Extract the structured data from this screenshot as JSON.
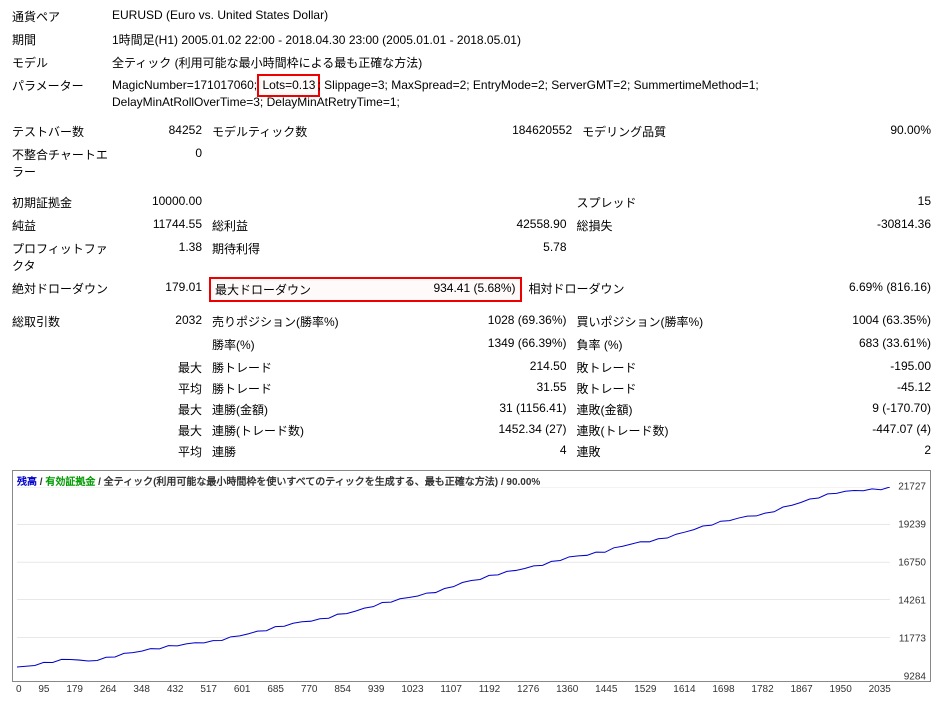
{
  "header": {
    "pair_label": "通貨ペア",
    "pair_value": "EURUSD (Euro vs. United States Dollar)",
    "period_label": "期間",
    "period_value": "1時間足(H1) 2005.01.02 22:00 - 2018.04.30 23:00 (2005.01.01 - 2018.05.01)",
    "model_label": "モデル",
    "model_value": "全ティック (利用可能な最小時間枠による最も正確な方法)",
    "params_label": "パラメーター",
    "params_pre": "MagicNumber=171017060",
    "params_red": "Lots=0.13",
    "params_post": "; Slippage=3; MaxSpread=2; EntryMode=2; ServerGMT=2; SummertimeMethod=1; DelayMinAtRollOverTime=3; DelayMinAtRetryTime=1;"
  },
  "stats": {
    "bars_label": "テストバー数",
    "bars": "84252",
    "ticks_label": "モデルティック数",
    "ticks": "184620552",
    "quality_label": "モデリング品質",
    "quality": "90.00%",
    "mismatch_label": "不整合チャートエラー",
    "mismatch": "0",
    "deposit_label": "初期証拠金",
    "deposit": "10000.00",
    "spread_label": "スプレッド",
    "spread": "15",
    "netprofit_label": "純益",
    "netprofit": "11744.55",
    "gross_profit_label": "総利益",
    "gross_profit": "42558.90",
    "gross_loss_label": "総損失",
    "gross_loss": "-30814.36",
    "pf_label": "プロフィットファクタ",
    "pf": "1.38",
    "expected_label": "期待利得",
    "expected": "5.78",
    "absdd_label": "絶対ドローダウン",
    "absdd": "179.01",
    "maxdd_label": "最大ドローダウン",
    "maxdd": "934.41 (5.68%)",
    "reldd_label": "相対ドローダウン",
    "reldd": "6.69% (816.16)",
    "total_label": "総取引数",
    "total": "2032",
    "sell_label": "売りポジション(勝率%)",
    "sell": "1028 (69.36%)",
    "buy_label": "買いポジション(勝率%)",
    "buy": "1004 (63.35%)",
    "winrate_label": "勝率(%)",
    "winrate": "1349 (66.39%)",
    "lossrate_label": "負率 (%)",
    "lossrate": "683 (33.61%)",
    "max_label": "最大",
    "avg_label": "平均",
    "wintrade_label": "勝トレード",
    "max_wintrade": "214.50",
    "losstrade_label": "敗トレード",
    "max_losstrade": "-195.00",
    "avg_wintrade": "31.55",
    "avg_losstrade": "-45.12",
    "conswin_amt_label": "連勝(金額)",
    "conswin_amt": "31 (1156.41)",
    "consloss_amt_label": "連敗(金額)",
    "consloss_amt": "9 (-170.70)",
    "conswin_cnt_label": "連勝(トレード数)",
    "conswin_cnt": "1452.34 (27)",
    "consloss_cnt_label": "連敗(トレード数)",
    "consloss_cnt": "-447.07 (4)",
    "avg_conswin_label": "連勝",
    "avg_conswin": "4",
    "avg_consloss_label": "連敗",
    "avg_consloss": "2"
  },
  "chart": {
    "legend_balance": "残高",
    "legend_equity": "有効証拠金",
    "legend_desc": " / 全ティック(利用可能な最小時間枠を使いすべてのティックを生成する、最も正確な方法) / 90.00%",
    "y_ticks": [
      "21727",
      "19239",
      "16750",
      "14261",
      "11773",
      "9284"
    ],
    "x_ticks": [
      "0",
      "95",
      "179",
      "264",
      "348",
      "432",
      "517",
      "601",
      "685",
      "770",
      "854",
      "939",
      "1023",
      "1107",
      "1192",
      "1276",
      "1360",
      "1445",
      "1529",
      "1614",
      "1698",
      "1782",
      "1867",
      "1950",
      "2035"
    ],
    "line_color": "#0000cc",
    "grid_color": "#d0d0d0",
    "balance_series": [
      9800,
      9900,
      10100,
      10300,
      10200,
      10450,
      10700,
      10850,
      11000,
      11200,
      11400,
      11550,
      11800,
      12000,
      12200,
      12500,
      12800,
      13000,
      13300,
      13500,
      13800,
      14100,
      14400,
      14700,
      15000,
      15400,
      15600,
      15900,
      16200,
      16500,
      16800,
      17100,
      17200,
      17400,
      17800,
      18100,
      18300,
      18600,
      18900,
      19200,
      19500,
      19800,
      20000,
      20400,
      20700,
      21000,
      21300,
      21500,
      21600,
      21727
    ],
    "y_min": 9284,
    "y_max": 21727
  }
}
